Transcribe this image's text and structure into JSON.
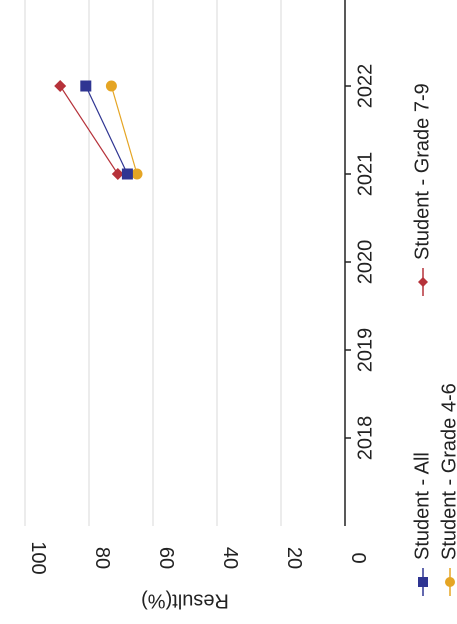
{
  "chart_data": {
    "type": "line",
    "orientation": "rotated-90",
    "ylabel": "Result(%)",
    "xlabel": "",
    "title": "",
    "ylim": [
      0,
      100
    ],
    "yticks": [
      "0",
      "20",
      "40",
      "60",
      "80",
      "100"
    ],
    "categories": [
      "2018",
      "2019",
      "2020",
      "2021",
      "2022"
    ],
    "grid": "on",
    "series": [
      {
        "name": "Student - All",
        "color": "#2f3592",
        "marker": "square",
        "values": [
          null,
          null,
          null,
          68,
          81
        ]
      },
      {
        "name": "Student - Grade 4-6",
        "color": "#e5a524",
        "marker": "circle",
        "values": [
          null,
          null,
          null,
          65,
          73
        ]
      },
      {
        "name": "Student - Grade 7-9",
        "color": "#b6323a",
        "marker": "diamond",
        "values": [
          null,
          null,
          null,
          71,
          89
        ]
      }
    ],
    "legend": "bottom"
  }
}
